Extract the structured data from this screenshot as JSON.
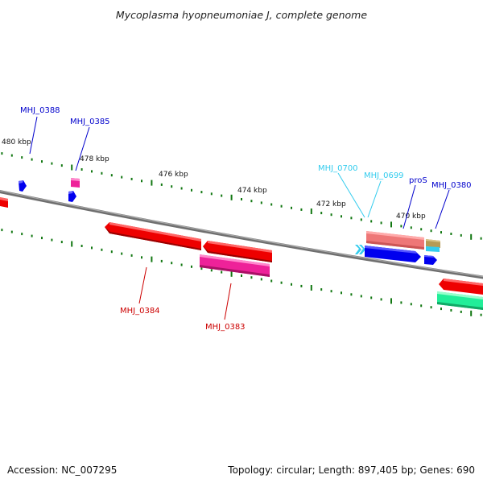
{
  "title": "Mycoplasma hyopneumoniae J, complete genome",
  "footer": {
    "accession": "Accession: NC_007295",
    "stats": "Topology: circular; Length: 897,405 bp; Genes: 690"
  },
  "ruler_labels": [
    "480 kbp",
    "478 kbp",
    "476 kbp",
    "474 kbp",
    "472 kbp",
    "470 kbp"
  ],
  "genes": [
    {
      "label": "MHJ_0388",
      "strand": "plus",
      "color": "#0000cc"
    },
    {
      "label": "MHJ_0385",
      "strand": "plus",
      "color": "#0000cc"
    },
    {
      "label": "MHJ_0700",
      "strand": "minus",
      "color": "#33ccee"
    },
    {
      "label": "MHJ_0699",
      "strand": "minus",
      "color": "#33ccee"
    },
    {
      "label": "proS",
      "strand": "plus",
      "color": "#0000cc"
    },
    {
      "label": "MHJ_0380",
      "strand": "plus",
      "color": "#0000cc"
    },
    {
      "label": "MHJ_0384",
      "strand": "minus",
      "color": "#cc0000"
    },
    {
      "label": "MHJ_0383",
      "strand": "minus",
      "color": "#cc0000"
    }
  ],
  "colors": {
    "backbone": "#808080",
    "tick": "#117711",
    "blue": "#0000ee",
    "red": "#ee0000",
    "magenta": "#ee2299",
    "pink": "#ee7777",
    "cyan": "#33ccee",
    "teal": "#22ee99"
  }
}
